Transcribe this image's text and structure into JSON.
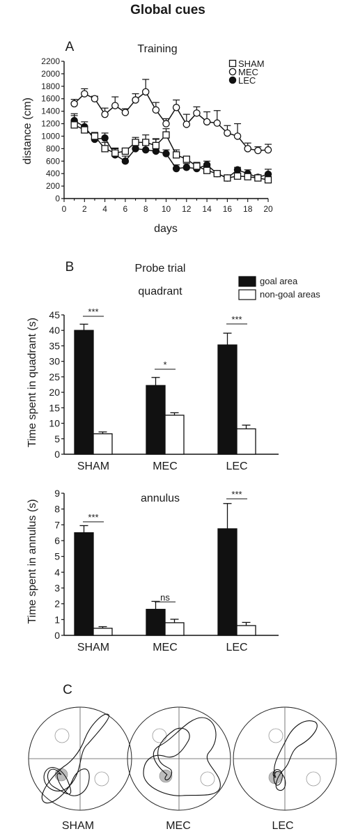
{
  "page": {
    "title": "Global cues",
    "panel_a": "A",
    "panel_b": "B",
    "panel_c": "C"
  },
  "chart_data": [
    {
      "type": "line",
      "title": "Training",
      "xlabel": "days",
      "ylabel": "distance (cm)",
      "xlim": [
        0,
        20
      ],
      "ylim": [
        0,
        2200
      ],
      "x_ticks": [
        0,
        2,
        4,
        6,
        8,
        10,
        12,
        14,
        16,
        18,
        20
      ],
      "y_ticks": [
        0,
        200,
        400,
        600,
        800,
        1000,
        1200,
        1400,
        1600,
        1800,
        2000,
        2200
      ],
      "legend_position": "top-right",
      "x": [
        1,
        2,
        3,
        4,
        5,
        6,
        7,
        8,
        9,
        10,
        11,
        12,
        13,
        14,
        15,
        16,
        17,
        18,
        19,
        20
      ],
      "series": [
        {
          "name": "SHAM",
          "marker": "open-square",
          "values": [
            1180,
            1100,
            1000,
            800,
            730,
            760,
            900,
            900,
            850,
            1020,
            700,
            630,
            520,
            450,
            400,
            330,
            360,
            350,
            330,
            300
          ],
          "errors": [
            180,
            60,
            60,
            100,
            80,
            40,
            80,
            120,
            100,
            100,
            80,
            40,
            60,
            60,
            30,
            40,
            40,
            40,
            40,
            40
          ]
        },
        {
          "name": "MEC",
          "marker": "open-circle",
          "values": [
            1520,
            1680,
            1600,
            1350,
            1490,
            1380,
            1580,
            1710,
            1420,
            1200,
            1460,
            1190,
            1370,
            1230,
            1210,
            1050,
            1000,
            800,
            770,
            780
          ],
          "errors": [
            70,
            80,
            40,
            100,
            140,
            60,
            100,
            200,
            120,
            80,
            120,
            160,
            100,
            160,
            200,
            120,
            200,
            90,
            60,
            90
          ]
        },
        {
          "name": "LEC",
          "marker": "filled-circle",
          "values": [
            1250,
            1150,
            950,
            970,
            700,
            600,
            800,
            780,
            760,
            720,
            480,
            500,
            480,
            540,
            400,
            330,
            460,
            400,
            340,
            390
          ],
          "errors": [
            80,
            80,
            100,
            80,
            100,
            80,
            120,
            100,
            200,
            60,
            60,
            60,
            80,
            60,
            40,
            30,
            40,
            60,
            40,
            80
          ]
        }
      ]
    },
    {
      "type": "bar",
      "title": "Probe trial",
      "subtitle": "quadrant",
      "ylabel": "Time spent in quadrant (s)",
      "ylim": [
        0,
        45
      ],
      "y_ticks": [
        0,
        5,
        10,
        15,
        20,
        25,
        30,
        35,
        40,
        45
      ],
      "categories": [
        "SHAM",
        "MEC",
        "LEC"
      ],
      "legend_position": "top-right",
      "series": [
        {
          "name": "goal area",
          "fill": "#111111",
          "values": [
            40,
            22.2,
            35.3
          ],
          "errors": [
            2,
            2.6,
            3.8
          ]
        },
        {
          "name": "non-goal areas",
          "fill": "#ffffff",
          "values": [
            6.6,
            12.6,
            8.2
          ],
          "errors": [
            0.6,
            0.8,
            1.2
          ]
        }
      ],
      "significance": [
        "***",
        "*",
        "***"
      ]
    },
    {
      "type": "bar",
      "subtitle": "annulus",
      "ylabel": "Time spent in annulus (s)",
      "ylim": [
        0,
        9
      ],
      "y_ticks": [
        0,
        1,
        2,
        3,
        4,
        5,
        6,
        7,
        8,
        9
      ],
      "categories": [
        "SHAM",
        "MEC",
        "LEC"
      ],
      "series": [
        {
          "name": "goal area",
          "fill": "#111111",
          "values": [
            6.5,
            1.65,
            6.75
          ],
          "errors": [
            0.45,
            0.5,
            1.6
          ]
        },
        {
          "name": "non-goal areas",
          "fill": "#ffffff",
          "values": [
            0.45,
            0.8,
            0.62
          ],
          "errors": [
            0.1,
            0.22,
            0.2
          ]
        }
      ],
      "significance": [
        "***",
        "ns",
        "***"
      ]
    }
  ],
  "trajectories": {
    "labels": [
      "SHAM",
      "MEC",
      "LEC"
    ]
  }
}
